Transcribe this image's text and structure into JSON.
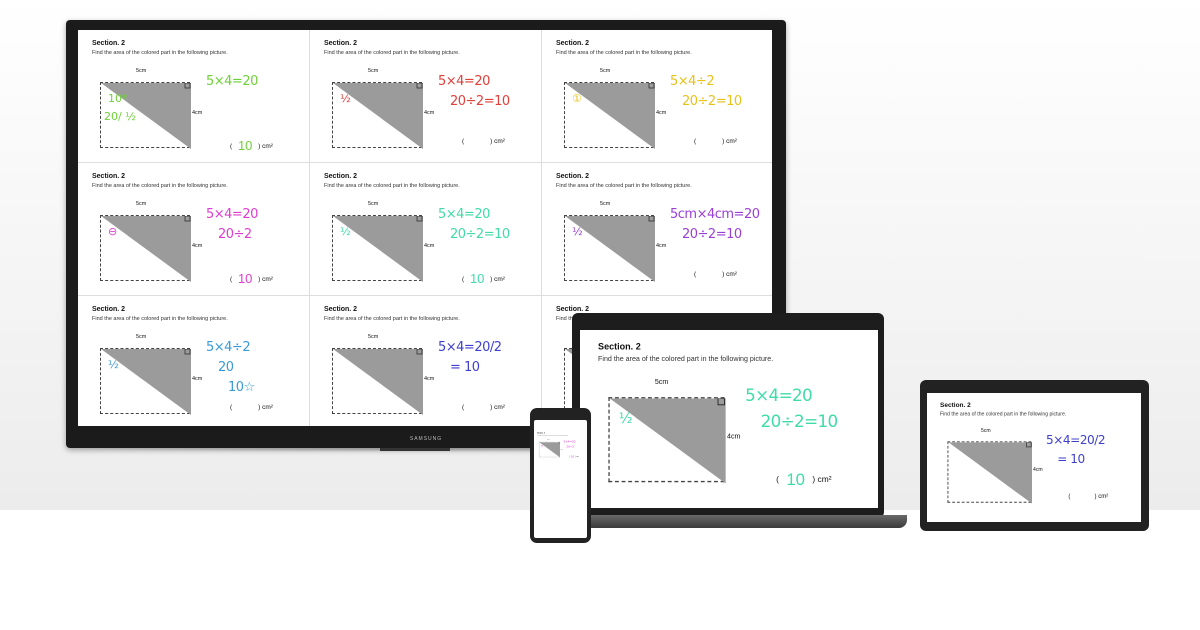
{
  "monitor": {
    "brand": "SAMSUNG"
  },
  "card_common": {
    "title": "Section. 2",
    "instruction": "Find the area of the colored part in the following picture.",
    "width_label": "5cm",
    "height_label": "4cm",
    "unit": ") cm²",
    "open_paren": "("
  },
  "cards": [
    {
      "color": "#6fd13a",
      "answer": "10",
      "notes": [
        "5×4=20"
      ],
      "fig_notes": [
        "10*",
        "20/ ½"
      ]
    },
    {
      "color": "#e0403a",
      "answer": "",
      "notes": [
        "5×4=20",
        "20÷2=10"
      ],
      "fig_notes": [
        "½"
      ]
    },
    {
      "color": "#e8c21a",
      "answer": "",
      "notes": [
        "5×4÷2",
        "20÷2=10"
      ],
      "fig_notes": [
        "①"
      ]
    },
    {
      "color": "#e03ccf",
      "answer": "10",
      "notes": [
        "5×4=20",
        "20÷2"
      ],
      "fig_notes": [
        "⊖"
      ]
    },
    {
      "color": "#3fdca8",
      "answer": "10",
      "notes": [
        "5×4=20",
        "20÷2=10"
      ],
      "fig_notes": [
        "½"
      ]
    },
    {
      "color": "#9a3fd8",
      "answer": "",
      "notes": [
        "5cm×4cm=20",
        "20÷2=10"
      ],
      "fig_notes": [
        "½"
      ]
    },
    {
      "color": "#3a9ad8",
      "answer": "",
      "notes": [
        "5×4÷2",
        "20",
        "10☆"
      ],
      "fig_notes": [
        "½"
      ]
    },
    {
      "color": "#3f3fd0",
      "answer": "",
      "notes": [
        "5×4=20/2",
        "= 10"
      ],
      "fig_notes": []
    },
    {
      "color": "#3f3fd0",
      "answer": "",
      "notes": [],
      "fig_notes": []
    }
  ],
  "laptop_card": 4,
  "tablet_card": 7,
  "phone_card": 3
}
